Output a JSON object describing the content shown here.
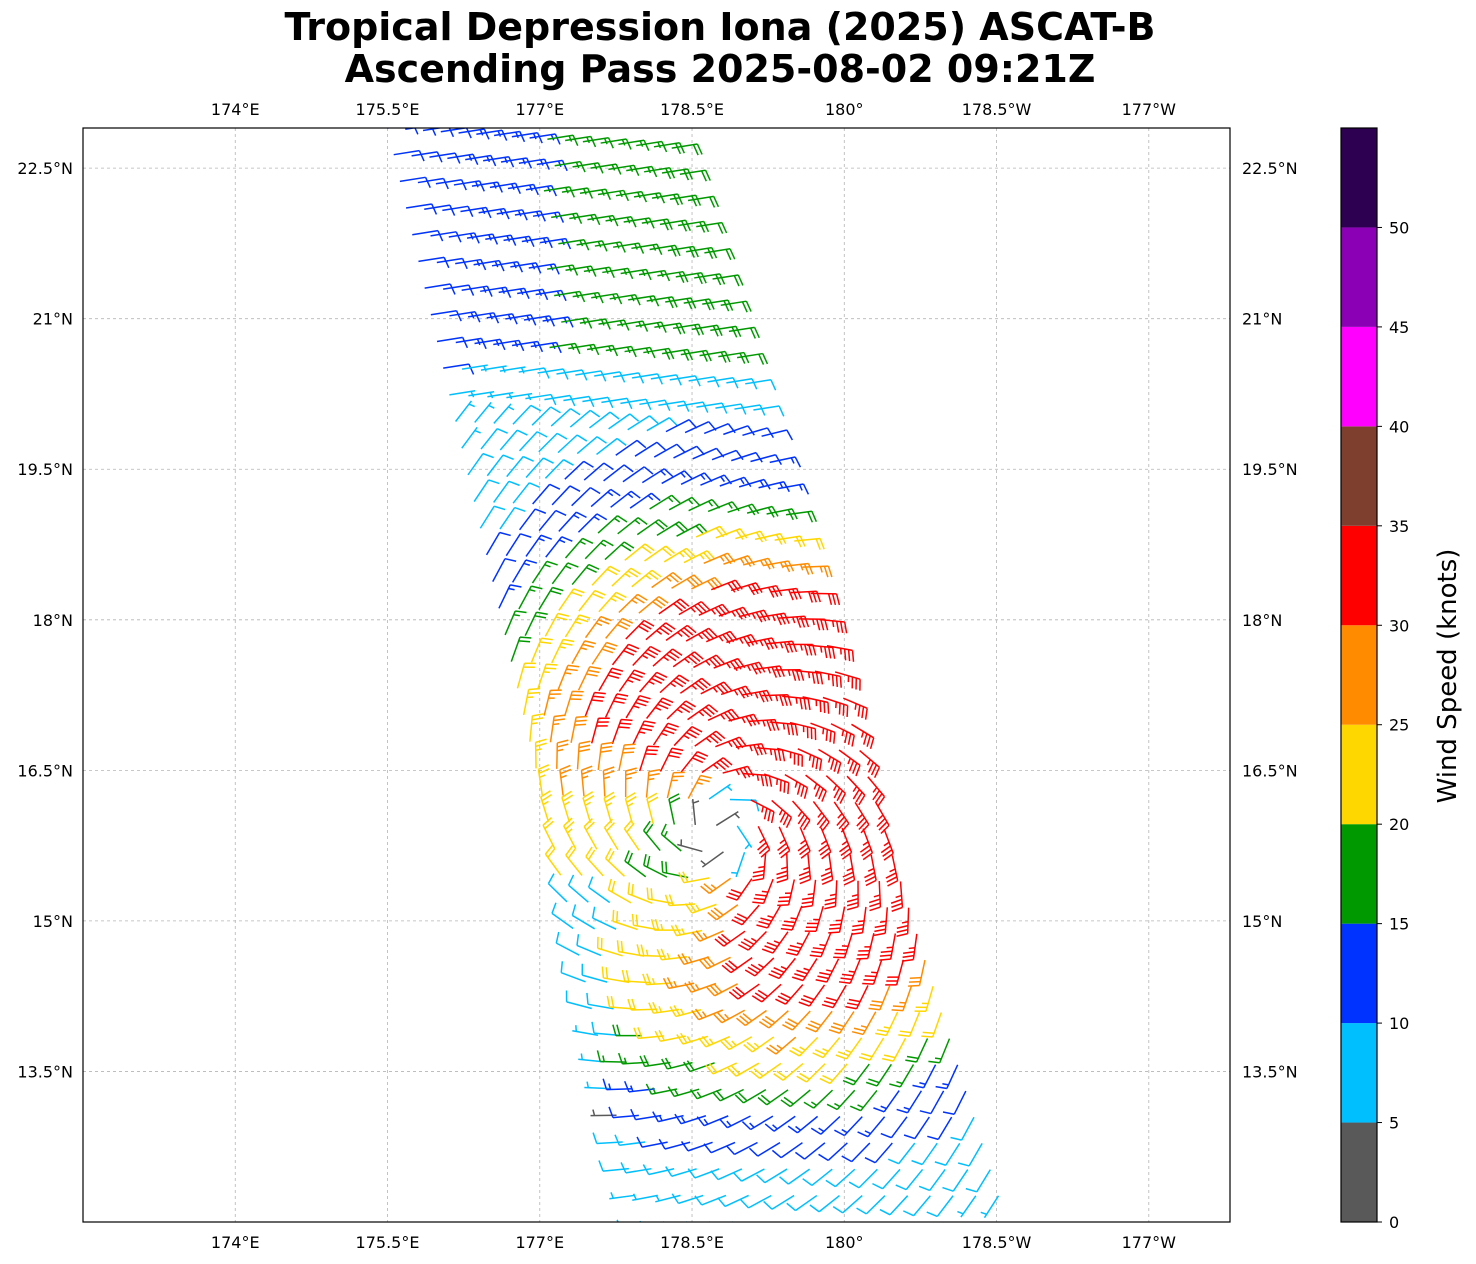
{
  "title": {
    "line1": "Tropical Depression Iona (2025) ASCAT-B",
    "line2": "Ascending Pass 2025-08-02 09:21Z"
  },
  "chart_data": {
    "type": "wind_barb_map",
    "projection": "PlateCarree",
    "xlim_lon": [
      172.5,
      183.8
    ],
    "ylim_lat": [
      12.0,
      22.9
    ],
    "lon_ticks": [
      {
        "value": 174.0,
        "label": "174°E"
      },
      {
        "value": 175.5,
        "label": "175.5°E"
      },
      {
        "value": 177.0,
        "label": "177°E"
      },
      {
        "value": 178.5,
        "label": "178.5°E"
      },
      {
        "value": 180.0,
        "label": "180°"
      },
      {
        "value": 181.5,
        "label": "178.5°W"
      },
      {
        "value": 183.0,
        "label": "177°W"
      }
    ],
    "lat_ticks": [
      {
        "value": 13.5,
        "label": "13.5°N"
      },
      {
        "value": 15.0,
        "label": "15°N"
      },
      {
        "value": 16.5,
        "label": "16.5°N"
      },
      {
        "value": 18.0,
        "label": "18°N"
      },
      {
        "value": 19.5,
        "label": "19.5°N"
      },
      {
        "value": 21.0,
        "label": "21°N"
      },
      {
        "value": 22.5,
        "label": "22.5°N"
      }
    ],
    "grid": true,
    "swath": {
      "corners_lon_lat": [
        [
          175.5,
          22.9
        ],
        [
          178.3,
          22.7
        ],
        [
          181.6,
          12.0
        ],
        [
          178.0,
          12.0
        ]
      ],
      "note": "approximate satellite swath polygon read from the figure"
    },
    "storm_center": {
      "lon": 178.75,
      "lat": 15.9
    },
    "wind_speed_units": "knots",
    "colorbar": {
      "label": "Wind Speed (knots)",
      "bins": [
        {
          "min": 0,
          "max": 5,
          "color": "#595959"
        },
        {
          "min": 5,
          "max": 10,
          "color": "#00bfff"
        },
        {
          "min": 10,
          "max": 15,
          "color": "#0033ff"
        },
        {
          "min": 15,
          "max": 20,
          "color": "#009900"
        },
        {
          "min": 20,
          "max": 25,
          "color": "#ffd700"
        },
        {
          "min": 25,
          "max": 30,
          "color": "#ff8c00"
        },
        {
          "min": 30,
          "max": 35,
          "color": "#ff0000"
        },
        {
          "min": 35,
          "max": 40,
          "color": "#7f3f2f"
        },
        {
          "min": 40,
          "max": 45,
          "color": "#ff00ff"
        },
        {
          "min": 45,
          "max": 50,
          "color": "#8b00b5"
        },
        {
          "min": 50,
          "max": 55,
          "color": "#2d0052"
        }
      ],
      "tick_labels": [
        "0",
        "5",
        "10",
        "15",
        "20",
        "25",
        "30",
        "35",
        "40",
        "45",
        "50"
      ]
    }
  }
}
